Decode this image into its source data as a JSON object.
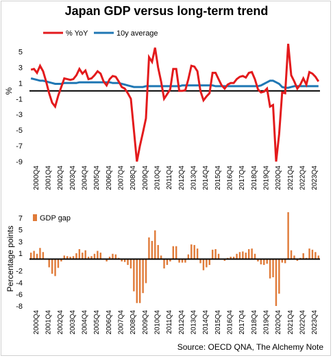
{
  "title": "Japan GDP versus long-term trend",
  "source": "Source: OECD QNA, The Alchemy Note",
  "colors": {
    "yoy": "#e31a1c",
    "avg": "#1f77b4",
    "gap": "#e07b39"
  },
  "chart_data": [
    {
      "type": "line",
      "name": "top-chart",
      "ylabel": "%",
      "ylim": [
        -9,
        6
      ],
      "yticks": [
        5,
        3,
        1,
        -1,
        -3,
        -5,
        -7,
        -9
      ],
      "legend_placement": "top-left",
      "x_tick_labels": [
        "2000Q4",
        "2001Q4",
        "2002Q4",
        "2003Q4",
        "2004Q4",
        "2005Q4",
        "2006Q4",
        "2007Q4",
        "2008Q4",
        "2009Q4",
        "2010Q4",
        "2011Q4",
        "2012Q4",
        "2013Q4",
        "2014Q4",
        "2015Q4",
        "2016Q4",
        "2017Q4",
        "2018Q4",
        "2019Q4",
        "2020Q4",
        "2021Q4",
        "2022Q4",
        "2023Q4"
      ],
      "series": [
        {
          "name": "% YoY",
          "values": [
            2.7,
            2.8,
            2.3,
            3.2,
            2.5,
            1.2,
            -0.3,
            -1.5,
            -2.0,
            -0.6,
            0.5,
            1.6,
            1.5,
            1.4,
            1.5,
            2.0,
            2.8,
            2.2,
            2.6,
            1.5,
            1.6,
            2.0,
            2.5,
            2.2,
            1.2,
            0.7,
            1.5,
            1.9,
            1.8,
            1.2,
            0.5,
            0.3,
            -0.3,
            -1.0,
            -5.0,
            -9.0,
            -7.0,
            -5.3,
            -3.5,
            4.3,
            3.7,
            5.5,
            3.0,
            1.2,
            -1.0,
            -0.4,
            0.2,
            2.8,
            2.8,
            0.0,
            0.0,
            0.1,
            1.5,
            3.2,
            3.1,
            2.5,
            0.0,
            -1.2,
            -0.7,
            -0.3,
            2.3,
            2.3,
            1.5,
            0.7,
            0.3,
            0.8,
            1.0,
            1.0,
            1.5,
            1.8,
            1.9,
            1.7,
            2.3,
            2.4,
            1.5,
            0.2,
            -0.2,
            -0.1,
            0.3,
            -2.0,
            -1.8,
            -9.0,
            -5.5,
            -0.2,
            -0.3,
            6.0,
            2.0,
            1.2,
            0.3,
            0.8,
            1.6,
            0.8,
            2.4,
            2.2,
            1.8,
            1.2
          ]
        },
        {
          "name": "10y average",
          "values": [
            1.6,
            1.5,
            1.4,
            1.3,
            1.3,
            1.2,
            1.1,
            1.0,
            0.9,
            0.9,
            0.9,
            1.0,
            1.0,
            1.0,
            1.0,
            1.0,
            1.1,
            1.1,
            1.1,
            1.1,
            1.1,
            1.1,
            1.1,
            1.1,
            1.1,
            1.1,
            1.1,
            1.0,
            1.0,
            1.0,
            0.9,
            0.8,
            0.7,
            0.6,
            0.5,
            0.5,
            0.5,
            0.5,
            0.6,
            0.6,
            0.6,
            0.6,
            0.6,
            0.6,
            0.6,
            0.6,
            0.6,
            0.6,
            0.6,
            0.6,
            0.7,
            0.7,
            0.7,
            0.7,
            0.7,
            0.7,
            0.7,
            0.7,
            0.7,
            0.7,
            0.7,
            0.6,
            0.6,
            0.6,
            0.6,
            0.6,
            0.6,
            0.6,
            0.6,
            0.6,
            0.6,
            0.6,
            0.6,
            0.6,
            0.6,
            0.6,
            0.7,
            0.9,
            1.1,
            1.3,
            1.3,
            1.1,
            0.9,
            0.5,
            0.4,
            0.4,
            0.5,
            0.6,
            0.6,
            0.6,
            0.6,
            0.6,
            0.6,
            0.6,
            0.6,
            0.6
          ]
        }
      ]
    },
    {
      "type": "bar",
      "name": "bottom-chart",
      "ylabel": "Percentage points",
      "ylim": [
        -8,
        8
      ],
      "yticks": [
        7,
        5,
        3,
        1,
        -2,
        -4,
        -6,
        -8
      ],
      "legend_placement": "top-left",
      "x_tick_labels": [
        "2000Q4",
        "2001Q4",
        "2002Q4",
        "2003Q4",
        "2004Q4",
        "2005Q4",
        "2006Q4",
        "2007Q4",
        "2008Q4",
        "2009Q4",
        "2010Q4",
        "2011Q4",
        "2012Q4",
        "2013Q4",
        "2014Q4",
        "2015Q4",
        "2016Q4",
        "2017Q4",
        "2018Q4",
        "2019Q4",
        "2020Q4",
        "2021Q4",
        "2022Q4",
        "2023Q4"
      ],
      "series": [
        {
          "name": "GDP gap",
          "values": [
            1.1,
            1.4,
            0.9,
            1.9,
            1.2,
            0.0,
            -1.4,
            -2.5,
            -2.9,
            -1.5,
            -0.4,
            0.6,
            0.5,
            0.4,
            0.5,
            1.0,
            1.7,
            1.1,
            1.5,
            0.4,
            0.5,
            0.9,
            1.4,
            1.1,
            0.1,
            -0.4,
            0.4,
            0.9,
            0.8,
            0.2,
            -0.4,
            -0.5,
            -1.0,
            -1.6,
            -5.5,
            -7.5,
            -7.5,
            -5.8,
            -4.1,
            3.7,
            3.1,
            4.9,
            2.4,
            0.6,
            -1.6,
            -1.0,
            -0.4,
            2.2,
            2.2,
            -0.6,
            -0.6,
            -0.6,
            0.8,
            2.5,
            2.4,
            1.8,
            -0.7,
            -1.9,
            -1.4,
            -1.0,
            1.6,
            1.7,
            0.9,
            0.1,
            -0.3,
            0.2,
            0.4,
            0.4,
            0.9,
            1.2,
            1.3,
            1.1,
            1.7,
            1.8,
            0.9,
            -0.4,
            -0.9,
            -1.0,
            -0.8,
            -3.3,
            -3.1,
            -8.0,
            -5.9,
            -0.6,
            -0.7,
            8.0,
            1.5,
            0.6,
            -0.3,
            0.2,
            1.0,
            0.2,
            1.8,
            1.6,
            1.2,
            0.6
          ]
        }
      ]
    }
  ]
}
